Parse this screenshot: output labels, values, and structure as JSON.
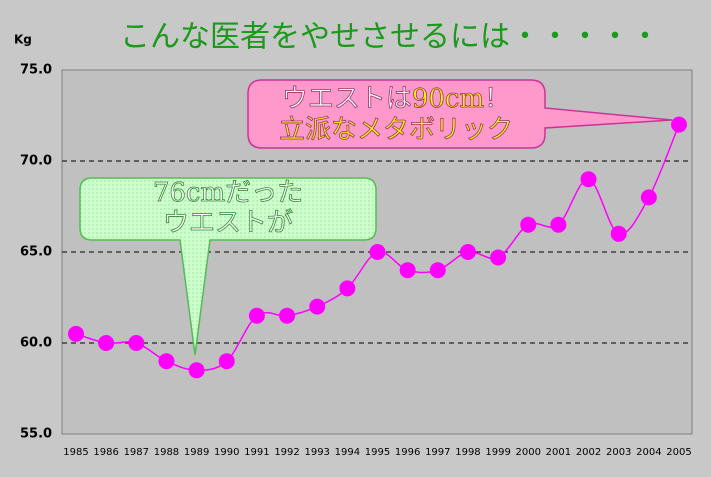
{
  "chart_data": {
    "type": "line",
    "title": "こんな医者をやせさせるには・・・・・",
    "y_label": "Kg",
    "categories": [
      "1985",
      "1986",
      "1987",
      "1988",
      "1989",
      "1990",
      "1991",
      "1992",
      "1993",
      "1994",
      "1995",
      "1996",
      "1997",
      "1998",
      "1999",
      "2000",
      "2001",
      "2002",
      "2003",
      "2004",
      "2005"
    ],
    "series": [
      {
        "color": "#ff00ff",
        "values": [
          60.5,
          60,
          60,
          59,
          58.5,
          59,
          61.5,
          61.5,
          62,
          63,
          65,
          64,
          64,
          65,
          64.7,
          66.5,
          66.5,
          69,
          66,
          68,
          72
        ]
      }
    ],
    "ylim": [
      55,
      75
    ],
    "yticks": [
      {
        "value": 55,
        "label": "55.0"
      },
      {
        "value": 60,
        "label": "60.0"
      },
      {
        "value": 65,
        "label": "65.0"
      },
      {
        "value": 70,
        "label": "70.0"
      },
      {
        "value": 75,
        "label": "75.0"
      }
    ],
    "grid": true,
    "annotations": [
      {
        "lines": [
          [
            "76cm",
            "だった"
          ],
          [
            "ウエストが"
          ]
        ]
      },
      {
        "lines": [
          [
            "ウエストは",
            "90cm",
            "！"
          ],
          [
            "立派なメタボリック"
          ]
        ]
      }
    ]
  }
}
